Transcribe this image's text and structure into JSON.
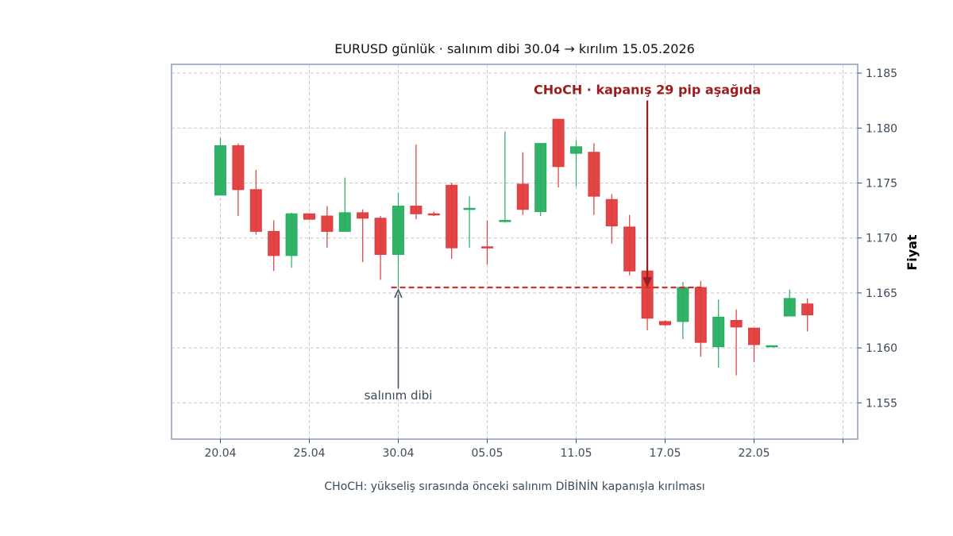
{
  "chart_data": {
    "type": "candlestick",
    "title": "EURUSD günlük · salınım dibi 30.04 → kırılım 15.05.2026",
    "ylabel": "Fiyat",
    "caption": "CHoCH: yükseliş sırasında önceki salınım DİBİNİN kapanışla kırılması",
    "ylim": [
      1.1517,
      1.1858
    ],
    "y_ticks": [
      "1.155",
      "1.160",
      "1.165",
      "1.170",
      "1.175",
      "1.180",
      "1.185"
    ],
    "y_tick_values": [
      1.155,
      1.16,
      1.165,
      1.17,
      1.175,
      1.18,
      1.185
    ],
    "x_tick_labels": [
      "20.04",
      "25.04",
      "30.04",
      "05.05",
      "11.05",
      "17.05",
      "22.05",
      ""
    ],
    "x_tick_index": [
      0,
      5,
      10,
      15,
      20,
      25,
      30,
      35
    ],
    "grid": true,
    "colors": {
      "up": "#27ae60",
      "down": "#e03b3b",
      "annot": "#9b1c1c",
      "swing": "#44546a",
      "grid": "#c8c8c8",
      "frame": "#8a9bb8"
    },
    "candles": [
      {
        "o": 1.1739,
        "h": 1.1791,
        "l": 1.1739,
        "c": 1.1784
      },
      {
        "o": 1.1784,
        "h": 1.1786,
        "l": 1.172,
        "c": 1.1744
      },
      {
        "o": 1.1744,
        "h": 1.1762,
        "l": 1.1703,
        "c": 1.1706
      },
      {
        "o": 1.1706,
        "h": 1.1716,
        "l": 1.167,
        "c": 1.1684
      },
      {
        "o": 1.1684,
        "h": 1.1723,
        "l": 1.1673,
        "c": 1.1722
      },
      {
        "o": 1.1722,
        "h": 1.1722,
        "l": 1.1717,
        "c": 1.1717
      },
      {
        "o": 1.172,
        "h": 1.1729,
        "l": 1.1691,
        "c": 1.1706
      },
      {
        "o": 1.1706,
        "h": 1.1755,
        "l": 1.1706,
        "c": 1.1723
      },
      {
        "o": 1.1723,
        "h": 1.1726,
        "l": 1.1678,
        "c": 1.1718
      },
      {
        "o": 1.1718,
        "h": 1.172,
        "l": 1.1662,
        "c": 1.1685
      },
      {
        "o": 1.1685,
        "h": 1.1741,
        "l": 1.1655,
        "c": 1.1729
      },
      {
        "o": 1.1729,
        "h": 1.1785,
        "l": 1.1717,
        "c": 1.1722
      },
      {
        "o": 1.1722,
        "h": 1.1724,
        "l": 1.172,
        "c": 1.1721
      },
      {
        "o": 1.1748,
        "h": 1.175,
        "l": 1.1681,
        "c": 1.1691
      },
      {
        "o": 1.1726,
        "h": 1.1738,
        "l": 1.1691,
        "c": 1.1727
      },
      {
        "o": 1.1692,
        "h": 1.1716,
        "l": 1.1676,
        "c": 1.1691
      },
      {
        "o": 1.1715,
        "h": 1.1797,
        "l": 1.1714,
        "c": 1.1716
      },
      {
        "o": 1.1749,
        "h": 1.1778,
        "l": 1.1721,
        "c": 1.1726
      },
      {
        "o": 1.1724,
        "h": 1.1786,
        "l": 1.172,
        "c": 1.1786
      },
      {
        "o": 1.1808,
        "h": 1.1808,
        "l": 1.1746,
        "c": 1.1765
      },
      {
        "o": 1.1777,
        "h": 1.1789,
        "l": 1.1747,
        "c": 1.1783
      },
      {
        "o": 1.1778,
        "h": 1.1786,
        "l": 1.1721,
        "c": 1.1738
      },
      {
        "o": 1.1735,
        "h": 1.174,
        "l": 1.1695,
        "c": 1.1711
      },
      {
        "o": 1.171,
        "h": 1.1721,
        "l": 1.1666,
        "c": 1.167
      },
      {
        "o": 1.167,
        "h": 1.167,
        "l": 1.1616,
        "c": 1.1627
      },
      {
        "o": 1.1624,
        "h": 1.1625,
        "l": 1.162,
        "c": 1.1621
      },
      {
        "o": 1.1624,
        "h": 1.166,
        "l": 1.1608,
        "c": 1.1655
      },
      {
        "o": 1.1655,
        "h": 1.1661,
        "l": 1.1592,
        "c": 1.1605
      },
      {
        "o": 1.1601,
        "h": 1.1644,
        "l": 1.1582,
        "c": 1.1628
      },
      {
        "o": 1.1625,
        "h": 1.1635,
        "l": 1.1575,
        "c": 1.1619
      },
      {
        "o": 1.1618,
        "h": 1.1618,
        "l": 1.1587,
        "c": 1.1603
      },
      {
        "o": 1.1602,
        "h": 1.1602,
        "l": 1.1602,
        "c": 1.1602
      },
      {
        "o": 1.1629,
        "h": 1.1653,
        "l": 1.1629,
        "c": 1.1645
      },
      {
        "o": 1.164,
        "h": 1.1645,
        "l": 1.1615,
        "c": 1.163
      }
    ],
    "swing_low": {
      "level": 1.1655,
      "from_index": 9.6,
      "to_index": 27.0
    },
    "swing_label": "salınım dibi",
    "swing_label_level": 1.1553,
    "choch_label": "CHoCH · kapanış 29 pip aşağıda",
    "choch_arrow": {
      "index": 24,
      "from": 1.1825,
      "to": 1.1656
    },
    "choch_label_level": 1.1831
  }
}
